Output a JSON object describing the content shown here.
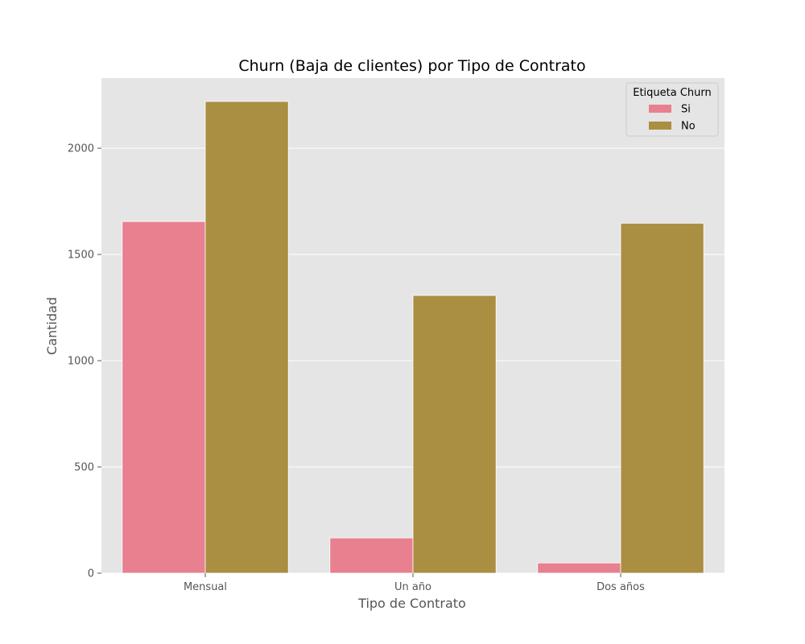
{
  "chart_data": {
    "type": "bar",
    "title": "Churn (Baja de clientes) por Tipo de Contrato",
    "xlabel": "Tipo de Contrato",
    "ylabel": "Cantidad",
    "categories": [
      "Mensual",
      "Un año",
      "Dos años"
    ],
    "series": [
      {
        "name": "Si",
        "values": [
          1655,
          166,
          48
        ],
        "color": "#e8808f"
      },
      {
        "name": "No",
        "values": [
          2220,
          1307,
          1647
        ],
        "color": "#aa8e42"
      }
    ],
    "ylim": [
      0,
      2330
    ],
    "yticks": [
      0,
      500,
      1000,
      1500,
      2000
    ],
    "grid": true,
    "legend": {
      "title": "Etiqueta Churn",
      "position": "top-right"
    },
    "background_color": "#e5e5e5"
  }
}
